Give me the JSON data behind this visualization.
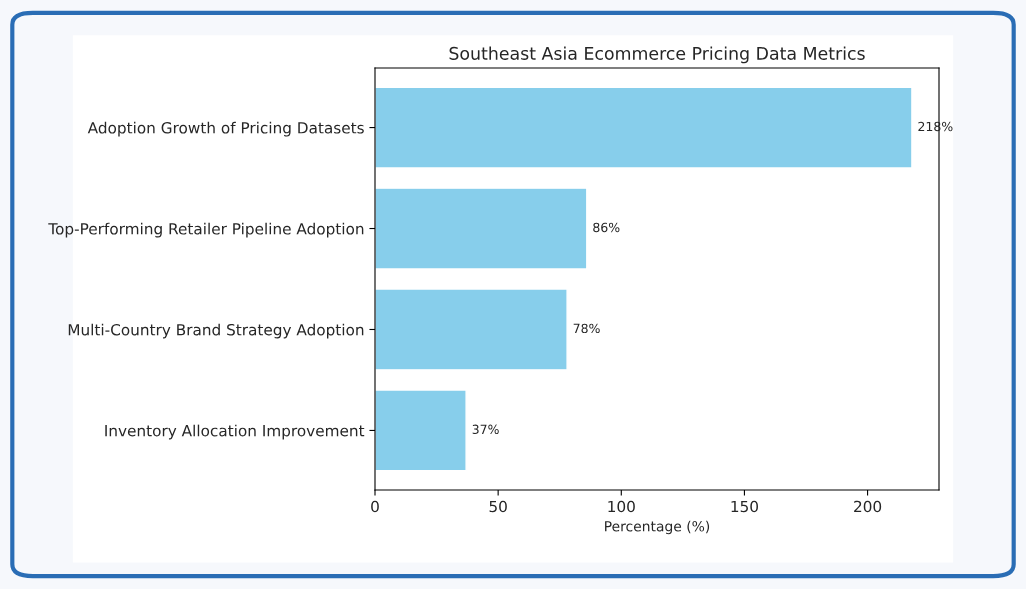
{
  "chart_data": {
    "type": "bar",
    "orientation": "horizontal",
    "title": "Southeast Asia Ecommerce Pricing Data Metrics",
    "xlabel": "Percentage (%)",
    "categories": [
      "Adoption Growth of Pricing Datasets",
      "Top-Performing Retailer Pipeline Adoption",
      "Multi-Country Brand Strategy Adoption",
      "Inventory Allocation Improvement"
    ],
    "values": [
      218,
      86,
      78,
      37
    ],
    "value_labels": [
      "218%",
      "86%",
      "78%",
      "37%"
    ],
    "color": "#87ceeb",
    "xlim": [
      0,
      229
    ],
    "xticks": [
      0,
      50,
      100,
      150,
      200
    ],
    "grid": false
  }
}
